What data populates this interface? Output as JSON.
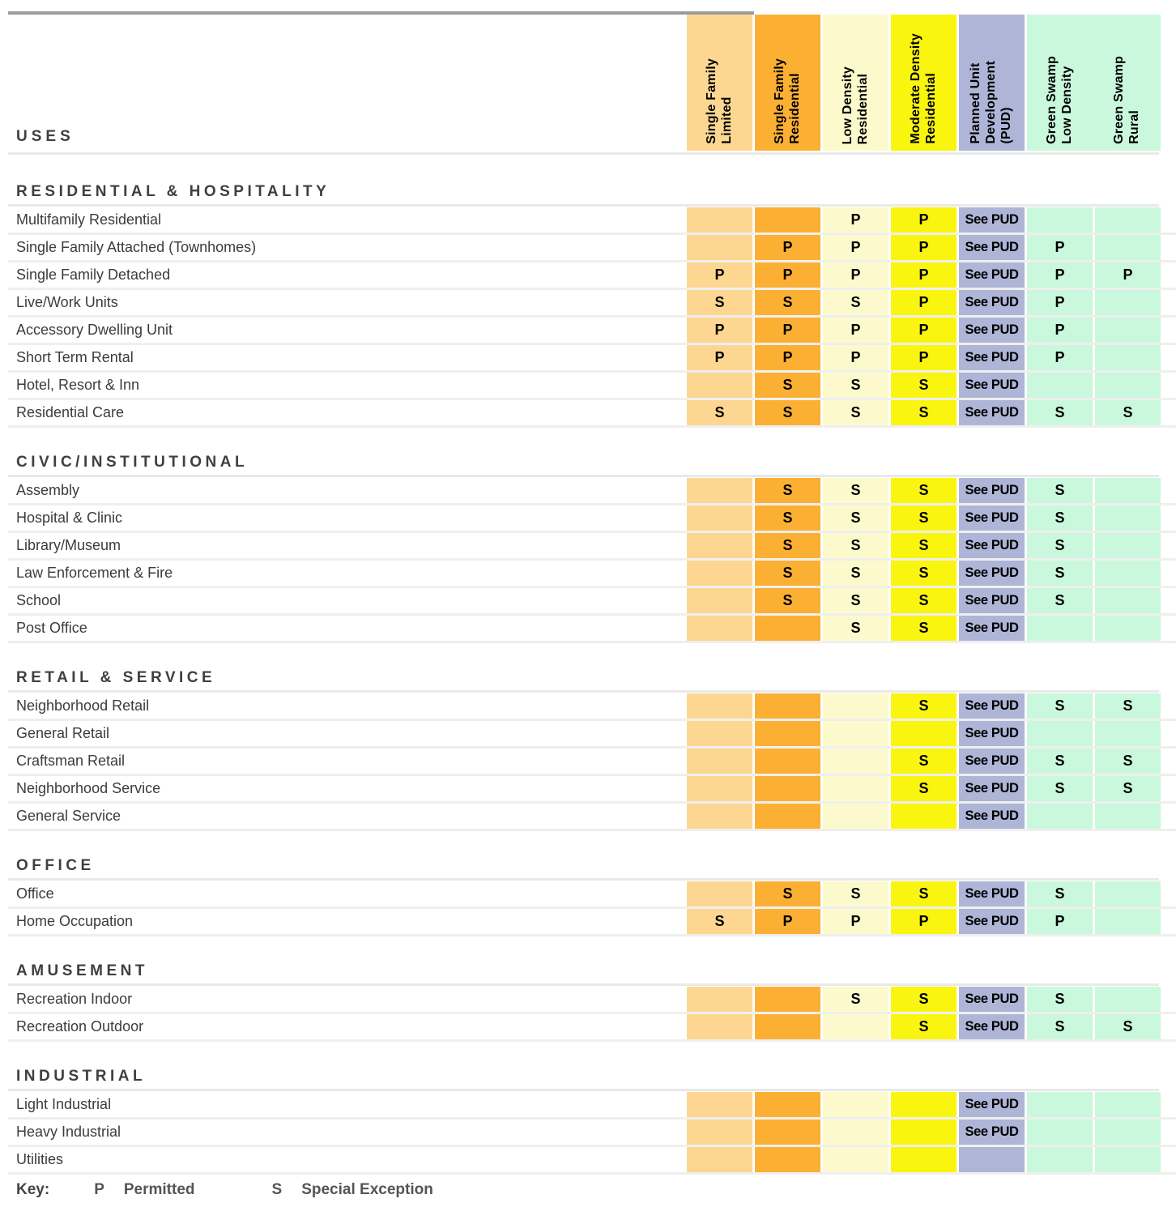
{
  "uses_label": "USES",
  "columns": [
    {
      "id": "single-family-limited",
      "label": "Single Family\nLimited",
      "color": "#fdd791"
    },
    {
      "id": "single-family-residential",
      "label": "Single Family\nResidential",
      "color": "#fbb034"
    },
    {
      "id": "low-density-residential",
      "label": "Low Density\nResidential",
      "color": "#fcfacc"
    },
    {
      "id": "moderate-density-residential",
      "label": "Moderate Density\nResidential",
      "color": "#faf50f"
    },
    {
      "id": "planned-unit-development",
      "label": "Planned Unit\nDevelopment\n(PUD)",
      "color": "#aeb5d7"
    },
    {
      "id": "green-swamp-low-density",
      "label": "Green Swamp\nLow Density",
      "color": "#c9f8dc"
    },
    {
      "id": "green-swamp-rural",
      "label": "Green Swamp\nRural",
      "color": "#c9f8dc"
    }
  ],
  "sections": [
    {
      "title": "RESIDENTIAL & HOSPITALITY",
      "rows": [
        {
          "label": "Multifamily Residential",
          "values": [
            "",
            "",
            "P",
            "P",
            "See PUD",
            "",
            ""
          ]
        },
        {
          "label": "Single Family Attached (Townhomes)",
          "values": [
            "",
            "P",
            "P",
            "P",
            "See PUD",
            "P",
            ""
          ]
        },
        {
          "label": "Single Family Detached",
          "values": [
            "P",
            "P",
            "P",
            "P",
            "See PUD",
            "P",
            "P"
          ]
        },
        {
          "label": "Live/Work Units",
          "values": [
            "S",
            "S",
            "S",
            "P",
            "See PUD",
            "P",
            ""
          ]
        },
        {
          "label": "Accessory Dwelling Unit",
          "values": [
            "P",
            "P",
            "P",
            "P",
            "See PUD",
            "P",
            ""
          ]
        },
        {
          "label": "Short Term Rental",
          "values": [
            "P",
            "P",
            "P",
            "P",
            "See PUD",
            "P",
            ""
          ]
        },
        {
          "label": "Hotel, Resort & Inn",
          "values": [
            "",
            "S",
            "S",
            "S",
            "See PUD",
            "",
            ""
          ]
        },
        {
          "label": "Residential Care",
          "values": [
            "S",
            "S",
            "S",
            "S",
            "See PUD",
            "S",
            "S"
          ]
        }
      ]
    },
    {
      "title": "CIVIC/INSTITUTIONAL",
      "rows": [
        {
          "label": "Assembly",
          "values": [
            "",
            "S",
            "S",
            "S",
            "See PUD",
            "S",
            ""
          ]
        },
        {
          "label": "Hospital & Clinic",
          "values": [
            "",
            "S",
            "S",
            "S",
            "See PUD",
            "S",
            ""
          ]
        },
        {
          "label": "Library/Museum",
          "values": [
            "",
            "S",
            "S",
            "S",
            "See PUD",
            "S",
            ""
          ]
        },
        {
          "label": "Law Enforcement & Fire",
          "values": [
            "",
            "S",
            "S",
            "S",
            "See PUD",
            "S",
            ""
          ]
        },
        {
          "label": "School",
          "values": [
            "",
            "S",
            "S",
            "S",
            "See PUD",
            "S",
            ""
          ]
        },
        {
          "label": "Post Office",
          "values": [
            "",
            "",
            "S",
            "S",
            "See PUD",
            "",
            ""
          ]
        }
      ]
    },
    {
      "title": "RETAIL & SERVICE",
      "rows": [
        {
          "label": "Neighborhood Retail",
          "values": [
            "",
            "",
            "",
            "S",
            "See PUD",
            "S",
            "S"
          ]
        },
        {
          "label": "General Retail",
          "values": [
            "",
            "",
            "",
            "",
            "See PUD",
            "",
            ""
          ]
        },
        {
          "label": "Craftsman Retail",
          "values": [
            "",
            "",
            "",
            "S",
            "See PUD",
            "S",
            "S"
          ]
        },
        {
          "label": "Neighborhood Service",
          "values": [
            "",
            "",
            "",
            "S",
            "See PUD",
            "S",
            "S"
          ]
        },
        {
          "label": "General Service",
          "values": [
            "",
            "",
            "",
            "",
            "See PUD",
            "",
            ""
          ]
        }
      ]
    },
    {
      "title": "OFFICE",
      "rows": [
        {
          "label": "Office",
          "values": [
            "",
            "S",
            "S",
            "S",
            "See PUD",
            "S",
            ""
          ]
        },
        {
          "label": "Home Occupation",
          "values": [
            "S",
            "P",
            "P",
            "P",
            "See PUD",
            "P",
            ""
          ]
        }
      ]
    },
    {
      "title": "AMUSEMENT",
      "rows": [
        {
          "label": "Recreation Indoor",
          "values": [
            "",
            "",
            "S",
            "S",
            "See PUD",
            "S",
            ""
          ]
        },
        {
          "label": "Recreation Outdoor",
          "values": [
            "",
            "",
            "",
            "S",
            "See PUD",
            "S",
            "S"
          ]
        }
      ]
    },
    {
      "title": "INDUSTRIAL",
      "rows": [
        {
          "label": "Light Industrial",
          "values": [
            "",
            "",
            "",
            "",
            "See PUD",
            "",
            ""
          ]
        },
        {
          "label": "Heavy Industrial",
          "values": [
            "",
            "",
            "",
            "",
            "See PUD",
            "",
            ""
          ]
        },
        {
          "label": "Utilities",
          "values": [
            "",
            "",
            "",
            "",
            "",
            "",
            ""
          ]
        }
      ]
    }
  ],
  "key": {
    "label": "Key:",
    "entries": [
      {
        "code": "P",
        "meaning": "Permitted"
      },
      {
        "code": "S",
        "meaning": "Special Exception"
      }
    ]
  },
  "colors": {
    "top_rule": "#9c9c9c",
    "divider": "#e9e9e9",
    "row_gap": "#efefef",
    "label_text": "#3c3c3c",
    "value_text": "#000000"
  }
}
